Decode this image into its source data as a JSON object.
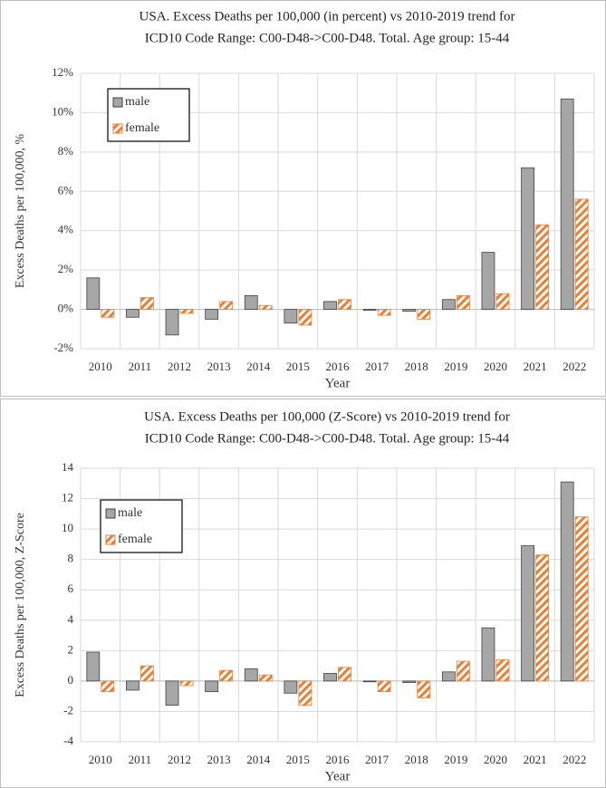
{
  "chart_data": [
    {
      "type": "bar",
      "title": [
        "USA. Excess Deaths per 100,000 (in percent) vs 2010-2019 trend for",
        "ICD10 Code Range: C00-D48->C00-D48. Total. Age group: 15-44"
      ],
      "x_label": "Year",
      "y_label": "Excess Deaths per 100,000, %",
      "categories": [
        "2010",
        "2011",
        "2012",
        "2013",
        "2014",
        "2015",
        "2016",
        "2017",
        "2018",
        "2019",
        "2020",
        "2021",
        "2022"
      ],
      "series": [
        {
          "name": "male",
          "color": "#a6a6a6",
          "values": [
            1.6,
            -0.4,
            -1.3,
            -0.5,
            0.7,
            -0.7,
            0.4,
            -0.05,
            -0.1,
            0.5,
            2.9,
            7.2,
            10.7
          ]
        },
        {
          "name": "female",
          "color": "#ed7d31",
          "values": [
            -0.4,
            0.6,
            -0.2,
            0.4,
            0.2,
            -0.8,
            0.5,
            -0.3,
            -0.5,
            0.7,
            0.8,
            4.3,
            5.6
          ]
        }
      ],
      "ylim": [
        -2,
        12
      ],
      "yticks": [
        {
          "value": -2,
          "label": "-2%"
        },
        {
          "value": 0,
          "label": "0%"
        },
        {
          "value": 2,
          "label": "2%"
        },
        {
          "value": 4,
          "label": "4%"
        },
        {
          "value": 6,
          "label": "6%"
        },
        {
          "value": 8,
          "label": "8%"
        },
        {
          "value": 10,
          "label": "10%"
        },
        {
          "value": 12,
          "label": "12%"
        }
      ],
      "grid": true,
      "legend": "upper left"
    },
    {
      "type": "bar",
      "title": [
        "USA. Excess Deaths per 100,000 (Z-Score) vs 2010-2019 trend for",
        "ICD10 Code Range: C00-D48->C00-D48. Total. Age group: 15-44"
      ],
      "x_label": "Year",
      "y_label": "Excess Deaths per 100,000, Z-Score",
      "categories": [
        "2010",
        "2011",
        "2012",
        "2013",
        "2014",
        "2015",
        "2016",
        "2017",
        "2018",
        "2019",
        "2020",
        "2021",
        "2022"
      ],
      "series": [
        {
          "name": "male",
          "color": "#a6a6a6",
          "values": [
            1.9,
            -0.6,
            -1.6,
            -0.7,
            0.8,
            -0.8,
            0.5,
            -0.05,
            -0.1,
            0.6,
            3.5,
            8.9,
            13.1
          ]
        },
        {
          "name": "female",
          "color": "#ed7d31",
          "values": [
            -0.7,
            1.0,
            -0.3,
            0.7,
            0.4,
            -1.6,
            0.9,
            -0.7,
            -1.1,
            1.3,
            1.4,
            8.3,
            10.8
          ]
        }
      ],
      "ylim": [
        -4,
        14
      ],
      "yticks": [
        -4,
        -2,
        0,
        2,
        4,
        6,
        8,
        10,
        12,
        14
      ],
      "grid": true,
      "legend": "upper left"
    }
  ]
}
